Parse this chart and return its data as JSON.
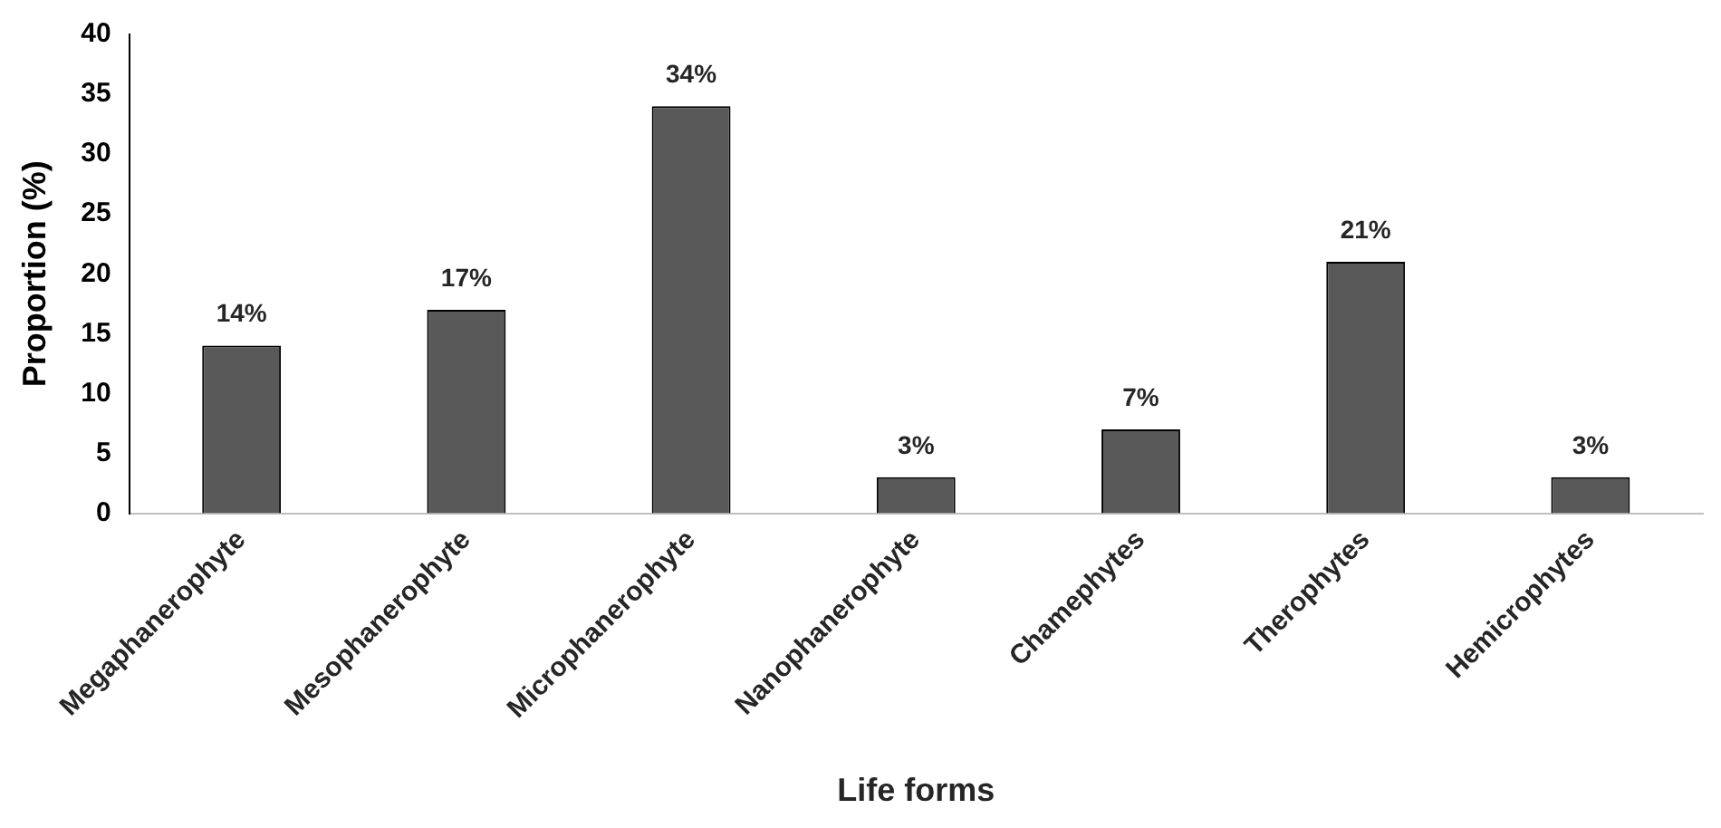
{
  "chart_data": {
    "type": "bar",
    "xlabel": "Life forms",
    "ylabel": "Proportion (%)",
    "categories": [
      "Megaphanerophyte",
      "Mesophanerophyte",
      "Microphanerophyte",
      "Nanophanerophyte",
      "Chamephytes",
      "Therophytes",
      "Hemicrophytes"
    ],
    "values": [
      14,
      17,
      34,
      3,
      7,
      21,
      3
    ],
    "value_labels": [
      "14%",
      "17%",
      "34%",
      "3%",
      "7%",
      "21%",
      "3%"
    ],
    "color": "#595959",
    "ylim": [
      0,
      40
    ],
    "yticks": [
      0,
      5,
      10,
      15,
      20,
      25,
      30,
      35,
      40
    ],
    "grid": false,
    "legend": false
  }
}
